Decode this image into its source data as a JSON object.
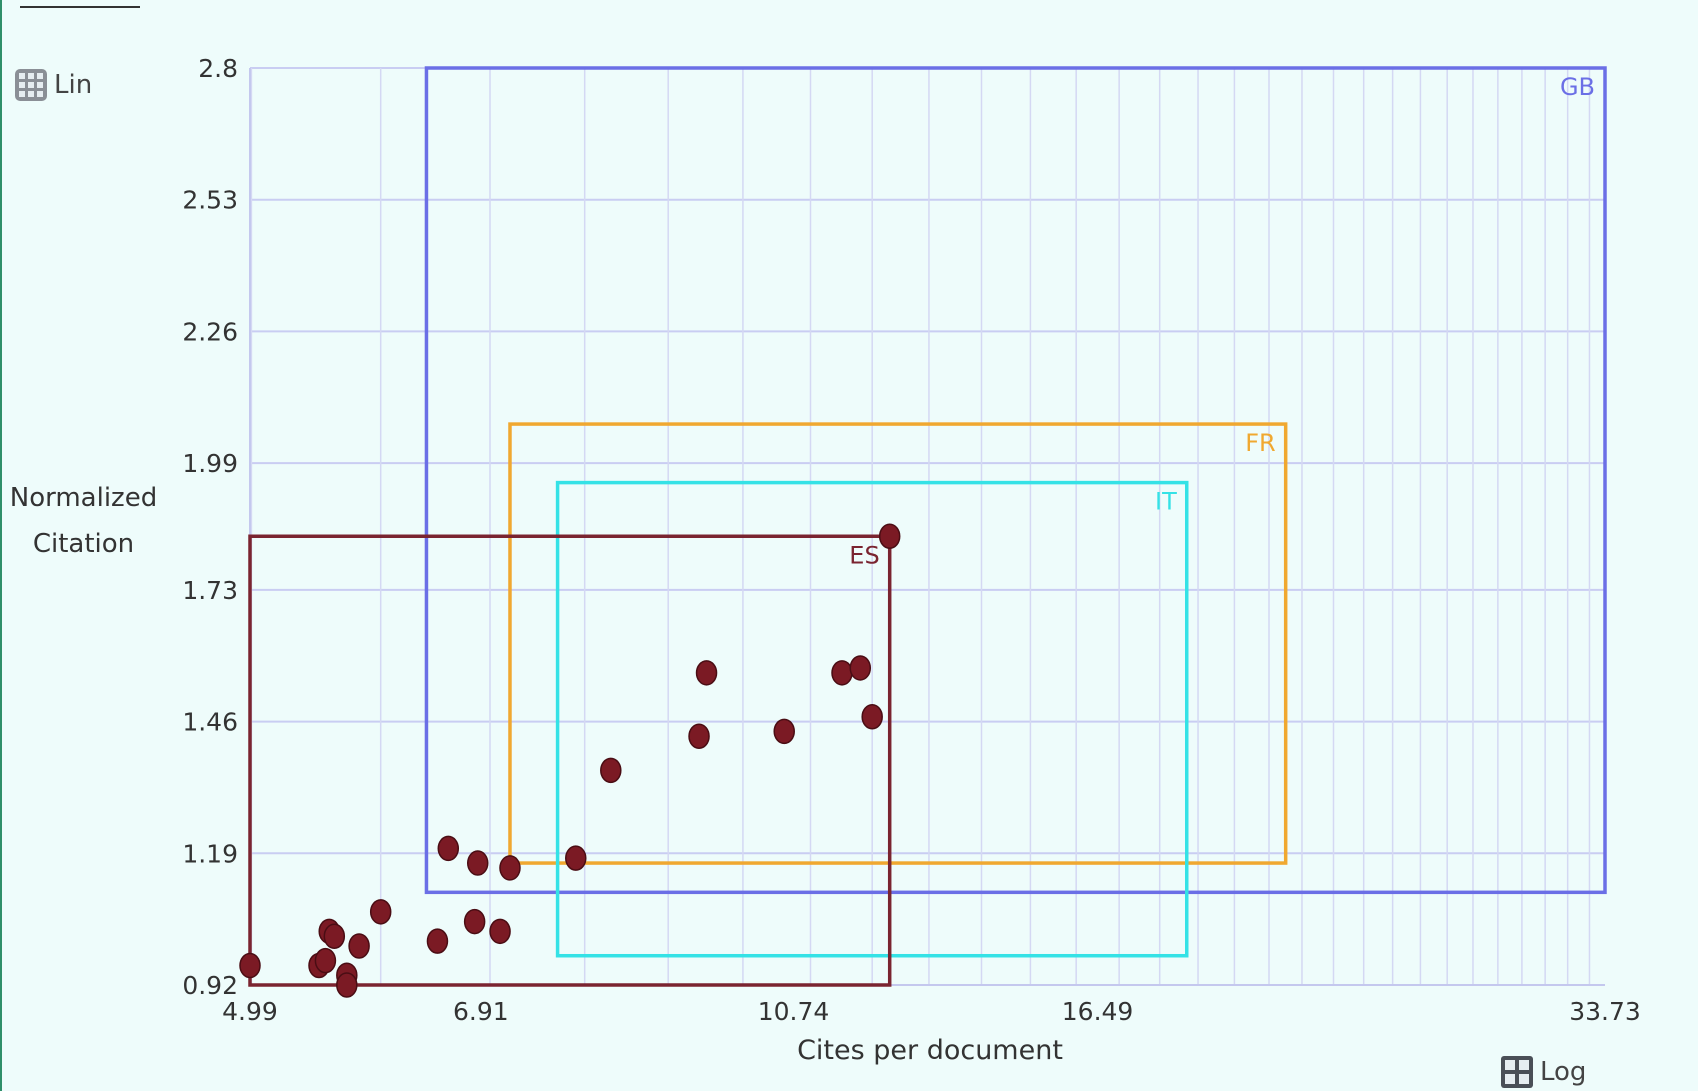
{
  "toggles": {
    "lin_label": "Lin",
    "log_label": "Log"
  },
  "chart_data": {
    "type": "scatter",
    "title": "",
    "xlabel": "Cites per document",
    "ylabel": "Normalized Citation",
    "x_scale": "log",
    "x_ticks": [
      "4.99",
      "6.91",
      "10.74",
      "16.49",
      "33.73"
    ],
    "y_ticks": [
      "0.92",
      "1.19",
      "1.46",
      "1.73",
      "1.99",
      "2.26",
      "2.53",
      "2.8"
    ],
    "xlim": [
      4.99,
      33.73
    ],
    "ylim": [
      0.92,
      2.8
    ],
    "grid": true,
    "ranges": [
      {
        "name": "GB",
        "color": "#6b6fe6",
        "x": [
          6.4,
          33.73
        ],
        "y": [
          1.11,
          2.8
        ]
      },
      {
        "name": "FR",
        "color": "#f0a830",
        "x": [
          7.2,
          21.5
        ],
        "y": [
          1.17,
          2.07
        ]
      },
      {
        "name": "IT",
        "color": "#34e2e6",
        "x": [
          7.7,
          18.7
        ],
        "y": [
          0.98,
          1.95
        ]
      },
      {
        "name": "ES",
        "color": "#7a2430",
        "x": [
          4.99,
          12.3
        ],
        "y": [
          0.92,
          1.84
        ]
      }
    ],
    "series": [
      {
        "name": "ES",
        "color": "#7b1a24",
        "points": [
          [
            4.99,
            0.96
          ],
          [
            5.5,
            0.96
          ],
          [
            5.55,
            0.97
          ],
          [
            5.58,
            1.03
          ],
          [
            5.62,
            1.02
          ],
          [
            5.72,
            0.94
          ],
          [
            5.72,
            0.92
          ],
          [
            5.82,
            1.0
          ],
          [
            6.0,
            1.07
          ],
          [
            6.5,
            1.01
          ],
          [
            6.6,
            1.2
          ],
          [
            6.85,
            1.05
          ],
          [
            6.88,
            1.17
          ],
          [
            7.1,
            1.03
          ],
          [
            7.2,
            1.16
          ],
          [
            7.9,
            1.18
          ],
          [
            8.3,
            1.36
          ],
          [
            9.4,
            1.43
          ],
          [
            9.5,
            1.56
          ],
          [
            10.6,
            1.44
          ],
          [
            11.5,
            1.56
          ],
          [
            11.8,
            1.57
          ],
          [
            12.0,
            1.47
          ],
          [
            12.3,
            1.84
          ]
        ]
      }
    ]
  }
}
